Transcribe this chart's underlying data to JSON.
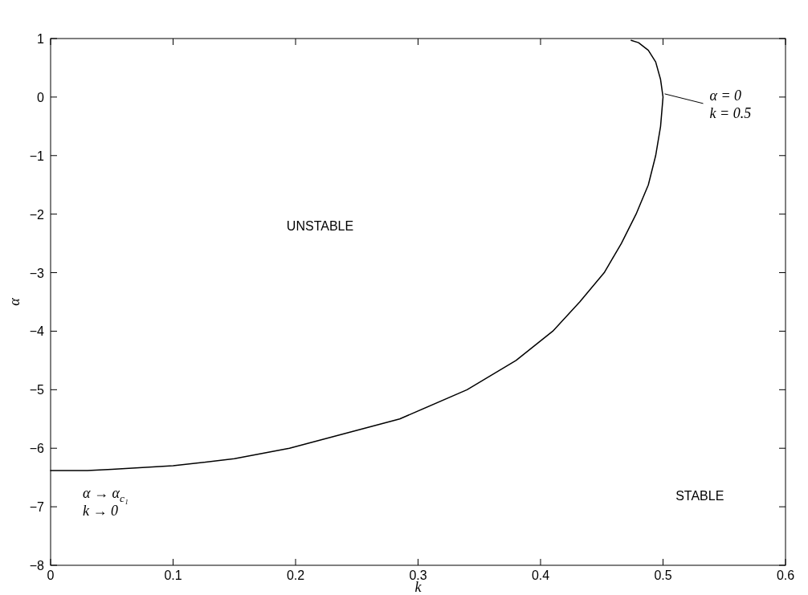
{
  "chart_data": {
    "type": "line",
    "xlabel": "k",
    "ylabel": "α",
    "xlim": [
      0,
      0.6
    ],
    "ylim": [
      -8,
      1
    ],
    "xticks": [
      0,
      0.1,
      0.2,
      0.3,
      0.4,
      0.5,
      0.6
    ],
    "yticks": [
      -8,
      -7,
      -6,
      -5,
      -4,
      -3,
      -2,
      -1,
      0,
      1
    ],
    "grid": false,
    "series": [
      {
        "color": "#000000",
        "x": [
          0,
          0.03,
          0.05,
          0.1,
          0.15,
          0.195,
          0.285,
          0.34,
          0.38,
          0.41,
          0.432,
          0.452,
          0.466,
          0.478,
          0.488,
          0.494,
          0.498,
          0.5,
          0.498,
          0.494,
          0.488,
          0.48,
          0.474
        ],
        "values": [
          -6.38,
          -6.38,
          -6.36,
          -6.3,
          -6.18,
          -6.0,
          -5.5,
          -5.0,
          -4.5,
          -4.0,
          -3.5,
          -3.0,
          -2.5,
          -2.0,
          -1.5,
          -1.0,
          -0.5,
          0,
          0.3,
          0.6,
          0.8,
          0.93,
          0.97
        ]
      }
    ],
    "annotations": [
      {
        "text": "α = 0\nk = 0.5",
        "x": 0.5,
        "y": 0
      },
      {
        "text": "α → α$_{c₁}$\nk → 0",
        "x": 0,
        "y": -6.38
      },
      "UNSTABLE",
      "STABLE"
    ]
  }
}
